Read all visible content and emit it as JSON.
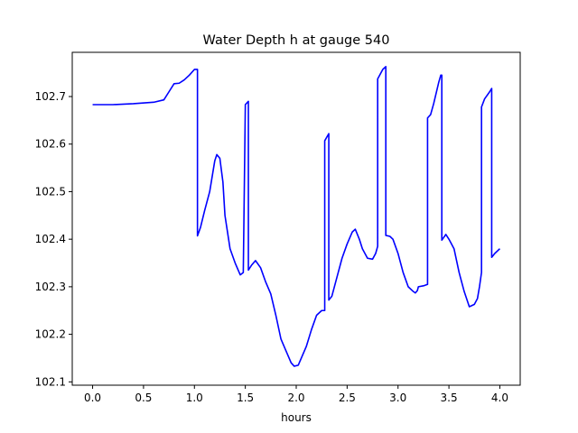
{
  "chart_data": {
    "type": "line",
    "title": "Water Depth h at gauge 540",
    "xlabel": "hours",
    "ylabel": "",
    "xlim": [
      -0.2,
      4.2
    ],
    "ylim": [
      102.093,
      102.793
    ],
    "xticks": [
      0.0,
      0.5,
      1.0,
      1.5,
      2.0,
      2.5,
      3.0,
      3.5,
      4.0
    ],
    "xtick_labels": [
      "0.0",
      "0.5",
      "1.0",
      "1.5",
      "2.0",
      "2.5",
      "3.0",
      "3.5",
      "4.0"
    ],
    "yticks": [
      102.1,
      102.2,
      102.3,
      102.4,
      102.5,
      102.6,
      102.7
    ],
    "ytick_labels": [
      "102.1",
      "102.2",
      "102.3",
      "102.4",
      "102.5",
      "102.6",
      "102.7"
    ],
    "grid": false,
    "series": [
      {
        "color": "#0000ff",
        "x": [
          0.0,
          0.2,
          0.4,
          0.6,
          0.7,
          0.75,
          0.8,
          0.85,
          0.9,
          0.95,
          1.0,
          1.03,
          1.03,
          1.06,
          1.1,
          1.15,
          1.2,
          1.22,
          1.25,
          1.28,
          1.3,
          1.35,
          1.4,
          1.45,
          1.48,
          1.5,
          1.5,
          1.53,
          1.53,
          1.56,
          1.6,
          1.65,
          1.7,
          1.75,
          1.8,
          1.85,
          1.9,
          1.95,
          1.98,
          2.02,
          2.05,
          2.1,
          2.15,
          2.2,
          2.25,
          2.28,
          2.28,
          2.32,
          2.32,
          2.35,
          2.4,
          2.45,
          2.5,
          2.55,
          2.58,
          2.62,
          2.65,
          2.7,
          2.75,
          2.78,
          2.8,
          2.8,
          2.85,
          2.88,
          2.88,
          2.92,
          2.95,
          3.0,
          3.05,
          3.1,
          3.15,
          3.17,
          3.19,
          3.2,
          3.25,
          3.29,
          3.29,
          3.32,
          3.35,
          3.4,
          3.42,
          3.43,
          3.43,
          3.47,
          3.5,
          3.55,
          3.6,
          3.65,
          3.7,
          3.72,
          3.75,
          3.78,
          3.8,
          3.82,
          3.82,
          3.85,
          3.9,
          3.92,
          3.92,
          3.95,
          4.0
        ],
        "y": [
          102.683,
          102.683,
          102.685,
          102.688,
          102.693,
          102.71,
          102.727,
          102.728,
          102.735,
          102.745,
          102.757,
          102.757,
          102.407,
          102.425,
          102.46,
          102.5,
          102.565,
          102.578,
          102.57,
          102.52,
          102.45,
          102.38,
          102.35,
          102.325,
          102.33,
          102.683,
          102.683,
          102.69,
          102.335,
          102.345,
          102.355,
          102.34,
          102.31,
          102.285,
          102.24,
          102.19,
          102.165,
          102.14,
          102.133,
          102.135,
          102.15,
          102.175,
          102.21,
          102.24,
          102.25,
          102.25,
          102.607,
          102.622,
          102.272,
          102.28,
          102.32,
          102.36,
          102.39,
          102.415,
          102.421,
          102.4,
          102.38,
          102.36,
          102.358,
          102.37,
          102.385,
          102.737,
          102.757,
          102.763,
          102.408,
          102.406,
          102.4,
          102.37,
          102.33,
          102.3,
          102.29,
          102.287,
          102.292,
          102.3,
          102.302,
          102.305,
          102.655,
          102.662,
          102.685,
          102.73,
          102.745,
          102.745,
          102.398,
          102.41,
          102.4,
          102.38,
          102.33,
          102.29,
          102.258,
          102.26,
          102.263,
          102.275,
          102.3,
          102.33,
          102.678,
          102.695,
          102.71,
          102.717,
          102.362,
          102.37,
          102.38
        ]
      }
    ]
  }
}
